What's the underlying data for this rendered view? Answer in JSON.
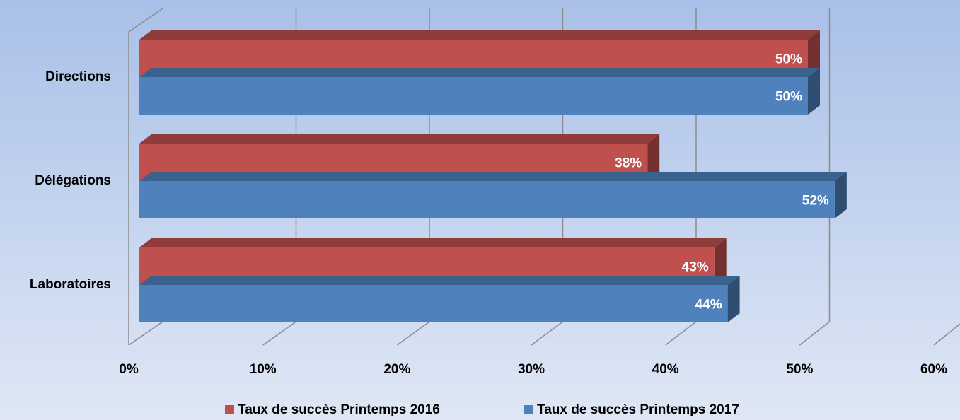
{
  "chart_data": {
    "type": "bar3d_horizontal",
    "categories": [
      "Directions",
      "Délégations",
      "Laboratoires"
    ],
    "series": [
      {
        "name": "Taux de succès Printemps 2016",
        "color": "#c0504d",
        "values": [
          50,
          38,
          43
        ],
        "value_labels": [
          "50%",
          "38%",
          "43%"
        ]
      },
      {
        "name": "Taux de succès Printemps 2017",
        "color": "#4f81bd",
        "values": [
          50,
          52,
          44
        ],
        "value_labels": [
          "50%",
          "52%",
          "44%"
        ]
      }
    ],
    "xlim": [
      0,
      60
    ],
    "xticks": [
      {
        "value": 0,
        "label": "0%"
      },
      {
        "value": 10,
        "label": "10%"
      },
      {
        "value": 20,
        "label": "20%"
      },
      {
        "value": 30,
        "label": "30%"
      },
      {
        "value": 40,
        "label": "40%"
      },
      {
        "value": 50,
        "label": "50%"
      },
      {
        "value": 60,
        "label": "60%"
      }
    ],
    "grid": true,
    "legend": "bottom"
  }
}
